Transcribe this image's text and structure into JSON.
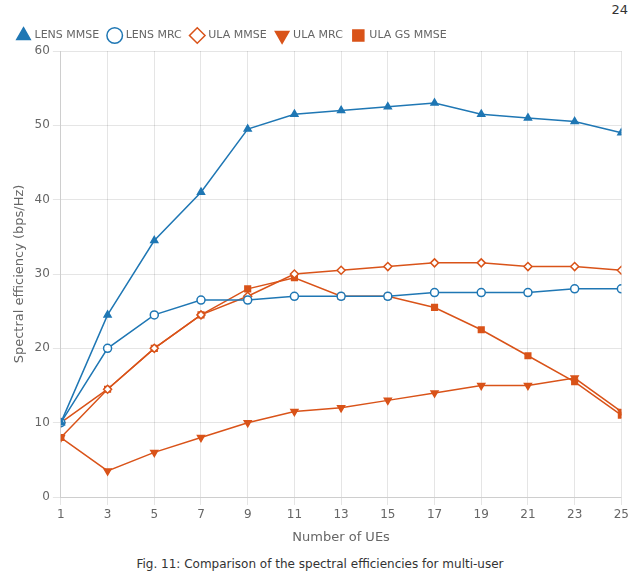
{
  "chart_data": {
    "type": "line",
    "xlabel": "Number of UEs",
    "ylabel": "Spectral efficiency (bps/Hz)",
    "x": [
      1,
      3,
      5,
      7,
      9,
      11,
      13,
      15,
      17,
      19,
      21,
      23,
      25
    ],
    "series": [
      {
        "name": "LENS MMSE",
        "color": "#1F77B4",
        "marker": "triangle-up",
        "line_style": "solid",
        "values": [
          10,
          24.5,
          34.5,
          41.0,
          49.5,
          51.5,
          52.0,
          52.5,
          53.0,
          51.5,
          51.0,
          50.5,
          49.0
        ]
      },
      {
        "name": "LENS MRC",
        "color": "#1F77B4",
        "marker": "circle-open",
        "line_style": "solid",
        "values": [
          10,
          20.0,
          24.5,
          26.5,
          26.5,
          27.0,
          27.0,
          27.0,
          27.5,
          27.5,
          27.5,
          28.0,
          28.0
        ]
      },
      {
        "name": "ULA MMSE",
        "color": "#D95319",
        "marker": "diamond-open",
        "line_style": "solid",
        "values": [
          10,
          14.5,
          20.0,
          24.5,
          27.0,
          30.0,
          30.5,
          31.0,
          31.5,
          31.5,
          31.0,
          31.0,
          30.5
        ]
      },
      {
        "name": "ULA MRC",
        "color": "#D95319",
        "marker": "triangle-down",
        "line_style": "solid",
        "values": [
          8,
          3.5,
          6.0,
          8.0,
          10.0,
          11.5,
          12.0,
          13.0,
          14.0,
          15.0,
          15.0,
          16.0,
          11.5
        ]
      },
      {
        "name": "ULA GS MMSE",
        "color": "#D95319",
        "marker": "square",
        "line_style": "solid",
        "values": [
          8,
          14.5,
          20.0,
          24.5,
          28.0,
          29.5,
          27.0,
          27.0,
          25.5,
          22.5,
          19.0,
          15.5,
          11.0
        ]
      }
    ],
    "xlim": [
      1,
      25
    ],
    "xticks": [
      1,
      3,
      5,
      7,
      9,
      11,
      13,
      15,
      17,
      19,
      21,
      23,
      25
    ],
    "ylim": [
      0,
      60
    ],
    "yticks": [
      0,
      10,
      20,
      30,
      40,
      50,
      60
    ],
    "grid": true,
    "legend": "upper left",
    "annotations": [
      "24",
      "Fig. 11: Comparison of the spectral efficiencies for multi-user"
    ]
  }
}
